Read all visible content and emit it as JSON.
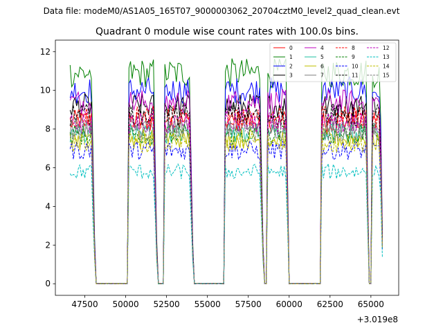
{
  "chart_data": {
    "type": "line",
    "suptitle": "Data file: modeM0/AS1A05_165T07_9000003062_20704cztM0_level2_quad_clean.evt",
    "title": "Quadrant 0 module wise count rates with 100.0s bins.",
    "xlabel": "",
    "ylabel": "",
    "x_offset_label": "+3.019e8",
    "xlim": [
      45700,
      66700
    ],
    "ylim": [
      -0.6,
      12.6
    ],
    "x_ticks": [
      47500,
      50000,
      52500,
      55000,
      57500,
      60000,
      62500,
      65000
    ],
    "x_tick_labels": [
      "47500",
      "50000",
      "52500",
      "55000",
      "57500",
      "60000",
      "62500",
      "65000"
    ],
    "y_ticks": [
      0,
      2,
      4,
      6,
      8,
      10,
      12
    ],
    "y_tick_labels": [
      "0",
      "2",
      "4",
      "6",
      "8",
      "10",
      "12"
    ],
    "segments": [
      {
        "start": 46600,
        "end": 47900,
        "ramp_end": 48150
      },
      {
        "start": 50200,
        "end": 51700,
        "ramp_end": 51950
      },
      {
        "start": 52350,
        "end": 53900,
        "ramp_end": 54150
      },
      {
        "start": 56100,
        "end": 58200,
        "ramp_end": 58450
      },
      {
        "start": 58700,
        "end": 59800,
        "ramp_end": 60000
      },
      {
        "start": 62000,
        "end": 64700,
        "ramp_end": 64900
      },
      {
        "start": 65050,
        "end": 65550,
        "ramp_end": 65750
      }
    ],
    "series": [
      {
        "name": "0",
        "color": "#ff0000",
        "dash": "solid",
        "level": 8.4
      },
      {
        "name": "1",
        "color": "#008000",
        "dash": "solid",
        "level": 10.9
      },
      {
        "name": "2",
        "color": "#0000ff",
        "dash": "solid",
        "level": 10.0
      },
      {
        "name": "3",
        "color": "#000000",
        "dash": "solid",
        "level": 9.2
      },
      {
        "name": "4",
        "color": "#bf00bf",
        "dash": "solid",
        "level": 9.4
      },
      {
        "name": "5",
        "color": "#1fbfa0",
        "dash": "solid",
        "level": 7.8
      },
      {
        "name": "6",
        "color": "#bfbf00",
        "dash": "solid",
        "level": 7.5
      },
      {
        "name": "7",
        "color": "#808080",
        "dash": "solid",
        "level": 8.1
      },
      {
        "name": "8",
        "color": "#ff0000",
        "dash": "dashed",
        "level": 8.6
      },
      {
        "name": "9",
        "color": "#008000",
        "dash": "dashed",
        "level": 7.7
      },
      {
        "name": "10",
        "color": "#0000ff",
        "dash": "dashed",
        "level": 6.9
      },
      {
        "name": "11",
        "color": "#000000",
        "dash": "dashed",
        "level": 8.7
      },
      {
        "name": "12",
        "color": "#bf00bf",
        "dash": "dashed",
        "level": 8.3
      },
      {
        "name": "13",
        "color": "#00bfbf",
        "dash": "dashed",
        "level": 5.8
      },
      {
        "name": "14",
        "color": "#bfbf00",
        "dash": "dashed",
        "level": 7.3
      },
      {
        "name": "15",
        "color": "#808080",
        "dash": "dashed",
        "level": 7.9
      }
    ],
    "legend_position": "top-right",
    "legend_columns": 4
  }
}
